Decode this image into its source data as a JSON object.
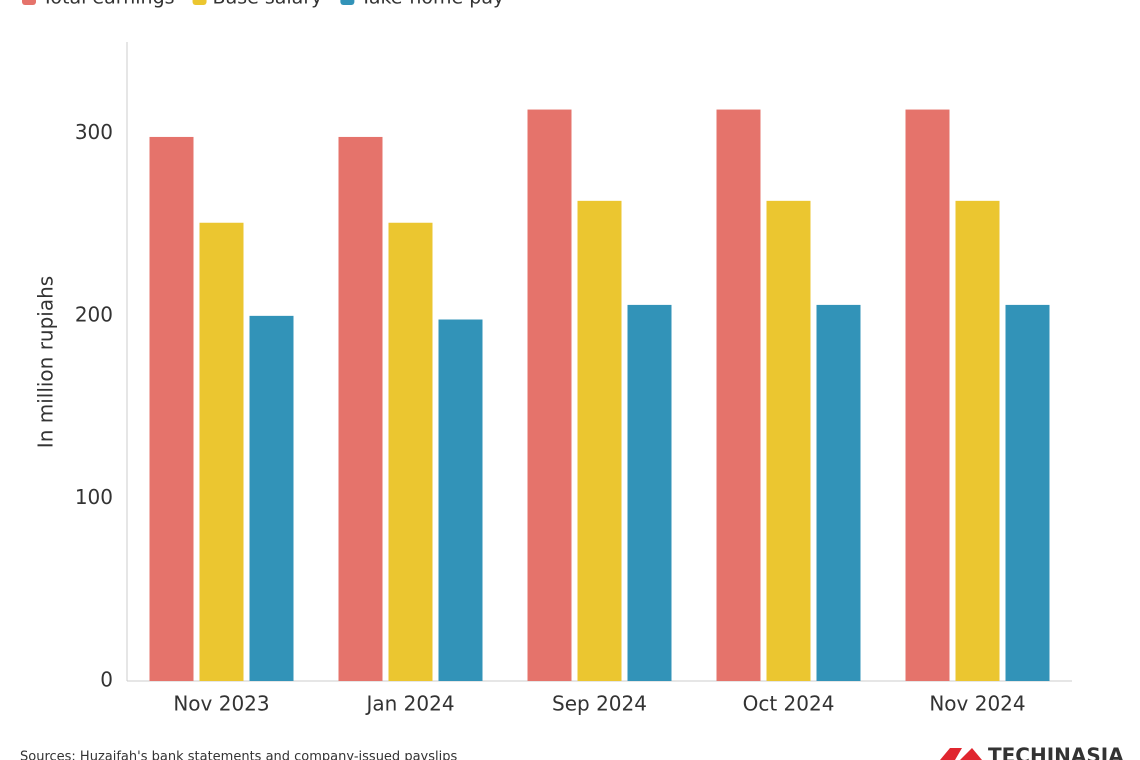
{
  "chart_data": {
    "type": "bar",
    "y_label": "In million rupiahs",
    "categories": [
      "Nov 2023",
      "Jan 2024",
      "Sep 2024",
      "Oct 2024",
      "Nov 2024"
    ],
    "series": [
      {
        "name": "Total earnings",
        "color": "#e5736b",
        "values": [
          298,
          298,
          313,
          313,
          313
        ]
      },
      {
        "name": "Base salary",
        "color": "#ebc630",
        "values": [
          251,
          251,
          263,
          263,
          263
        ]
      },
      {
        "name": "Take-home pay",
        "color": "#3293b8",
        "values": [
          200,
          198,
          206,
          206,
          206
        ]
      }
    ],
    "ylim": [
      0,
      350
    ],
    "yticks": [
      0,
      100,
      200,
      300
    ],
    "grid": false,
    "source": "Sources: Huzaifah's bank statements and company-issued payslips",
    "logo": "TECHINASIA"
  }
}
